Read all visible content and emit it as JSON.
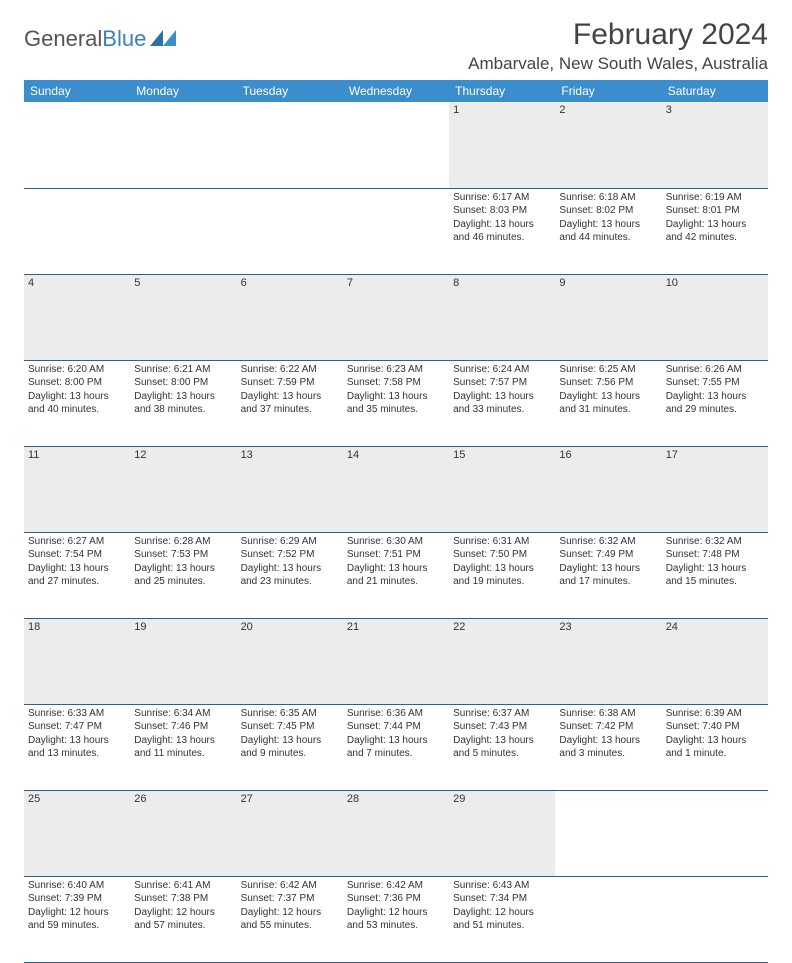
{
  "brand": {
    "part1": "General",
    "part2": "Blue"
  },
  "title": "February 2024",
  "location": "Ambarvale, New South Wales, Australia",
  "colors": {
    "header_bg": "#3b8dcb",
    "daynum_bg": "#ececec",
    "rule": "#2f5f8f"
  },
  "dayNames": [
    "Sunday",
    "Monday",
    "Tuesday",
    "Wednesday",
    "Thursday",
    "Friday",
    "Saturday"
  ],
  "weeks": [
    [
      null,
      null,
      null,
      null,
      {
        "n": "1",
        "sr": "6:17 AM",
        "ss": "8:03 PM",
        "dl": "13 hours and 46 minutes."
      },
      {
        "n": "2",
        "sr": "6:18 AM",
        "ss": "8:02 PM",
        "dl": "13 hours and 44 minutes."
      },
      {
        "n": "3",
        "sr": "6:19 AM",
        "ss": "8:01 PM",
        "dl": "13 hours and 42 minutes."
      }
    ],
    [
      {
        "n": "4",
        "sr": "6:20 AM",
        "ss": "8:00 PM",
        "dl": "13 hours and 40 minutes."
      },
      {
        "n": "5",
        "sr": "6:21 AM",
        "ss": "8:00 PM",
        "dl": "13 hours and 38 minutes."
      },
      {
        "n": "6",
        "sr": "6:22 AM",
        "ss": "7:59 PM",
        "dl": "13 hours and 37 minutes."
      },
      {
        "n": "7",
        "sr": "6:23 AM",
        "ss": "7:58 PM",
        "dl": "13 hours and 35 minutes."
      },
      {
        "n": "8",
        "sr": "6:24 AM",
        "ss": "7:57 PM",
        "dl": "13 hours and 33 minutes."
      },
      {
        "n": "9",
        "sr": "6:25 AM",
        "ss": "7:56 PM",
        "dl": "13 hours and 31 minutes."
      },
      {
        "n": "10",
        "sr": "6:26 AM",
        "ss": "7:55 PM",
        "dl": "13 hours and 29 minutes."
      }
    ],
    [
      {
        "n": "11",
        "sr": "6:27 AM",
        "ss": "7:54 PM",
        "dl": "13 hours and 27 minutes."
      },
      {
        "n": "12",
        "sr": "6:28 AM",
        "ss": "7:53 PM",
        "dl": "13 hours and 25 minutes."
      },
      {
        "n": "13",
        "sr": "6:29 AM",
        "ss": "7:52 PM",
        "dl": "13 hours and 23 minutes."
      },
      {
        "n": "14",
        "sr": "6:30 AM",
        "ss": "7:51 PM",
        "dl": "13 hours and 21 minutes."
      },
      {
        "n": "15",
        "sr": "6:31 AM",
        "ss": "7:50 PM",
        "dl": "13 hours and 19 minutes."
      },
      {
        "n": "16",
        "sr": "6:32 AM",
        "ss": "7:49 PM",
        "dl": "13 hours and 17 minutes."
      },
      {
        "n": "17",
        "sr": "6:32 AM",
        "ss": "7:48 PM",
        "dl": "13 hours and 15 minutes."
      }
    ],
    [
      {
        "n": "18",
        "sr": "6:33 AM",
        "ss": "7:47 PM",
        "dl": "13 hours and 13 minutes."
      },
      {
        "n": "19",
        "sr": "6:34 AM",
        "ss": "7:46 PM",
        "dl": "13 hours and 11 minutes."
      },
      {
        "n": "20",
        "sr": "6:35 AM",
        "ss": "7:45 PM",
        "dl": "13 hours and 9 minutes."
      },
      {
        "n": "21",
        "sr": "6:36 AM",
        "ss": "7:44 PM",
        "dl": "13 hours and 7 minutes."
      },
      {
        "n": "22",
        "sr": "6:37 AM",
        "ss": "7:43 PM",
        "dl": "13 hours and 5 minutes."
      },
      {
        "n": "23",
        "sr": "6:38 AM",
        "ss": "7:42 PM",
        "dl": "13 hours and 3 minutes."
      },
      {
        "n": "24",
        "sr": "6:39 AM",
        "ss": "7:40 PM",
        "dl": "13 hours and 1 minute."
      }
    ],
    [
      {
        "n": "25",
        "sr": "6:40 AM",
        "ss": "7:39 PM",
        "dl": "12 hours and 59 minutes."
      },
      {
        "n": "26",
        "sr": "6:41 AM",
        "ss": "7:38 PM",
        "dl": "12 hours and 57 minutes."
      },
      {
        "n": "27",
        "sr": "6:42 AM",
        "ss": "7:37 PM",
        "dl": "12 hours and 55 minutes."
      },
      {
        "n": "28",
        "sr": "6:42 AM",
        "ss": "7:36 PM",
        "dl": "12 hours and 53 minutes."
      },
      {
        "n": "29",
        "sr": "6:43 AM",
        "ss": "7:34 PM",
        "dl": "12 hours and 51 minutes."
      },
      null,
      null
    ]
  ],
  "labels": {
    "sunrise": "Sunrise:",
    "sunset": "Sunset:",
    "daylight": "Daylight:"
  }
}
